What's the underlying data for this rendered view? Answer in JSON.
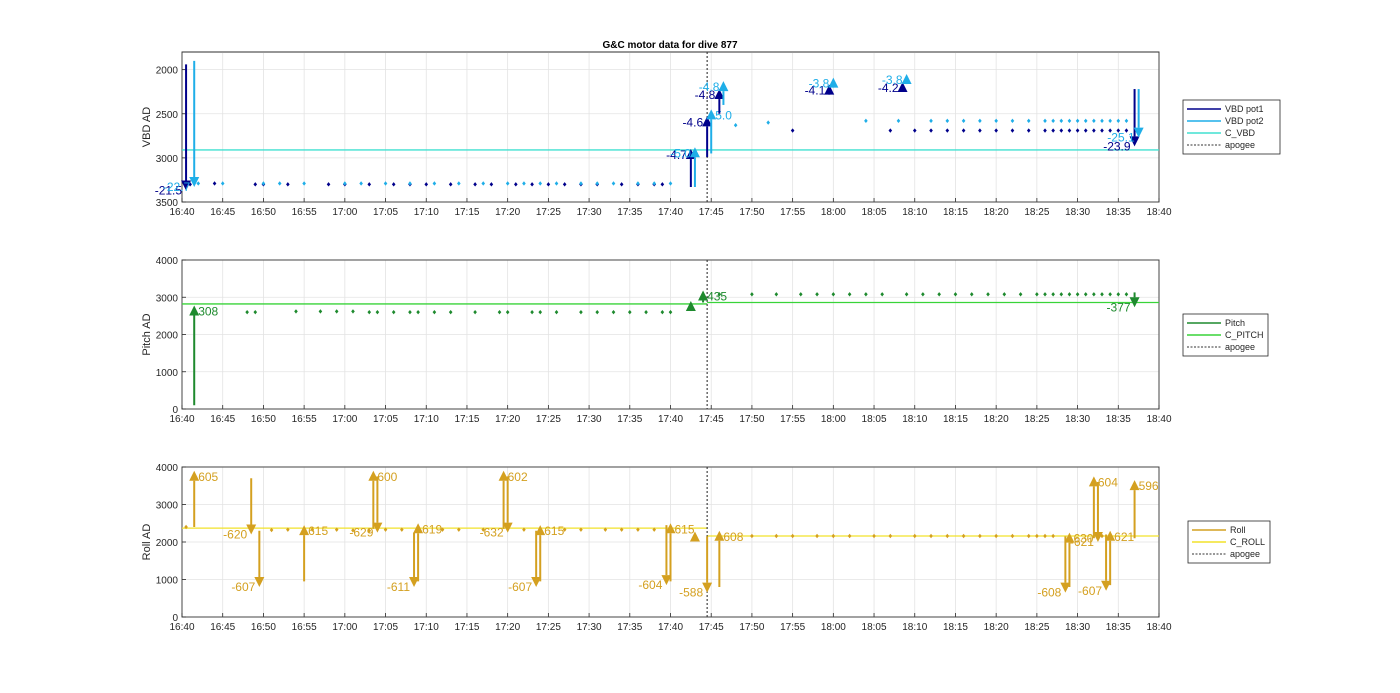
{
  "chart_data": {
    "title": "G&C motor data for dive 877",
    "x_range": [
      "16:40",
      "18:40"
    ],
    "x_ticks": [
      "16:40",
      "16:45",
      "16:50",
      "16:55",
      "17:00",
      "17:05",
      "17:10",
      "17:15",
      "17:20",
      "17:25",
      "17:30",
      "17:35",
      "17:40",
      "17:45",
      "17:50",
      "17:55",
      "18:00",
      "18:05",
      "18:10",
      "18:15",
      "18:20",
      "18:25",
      "18:30",
      "18:35",
      "18:40"
    ],
    "grid": true,
    "legend_placement": "right",
    "apogee_time": "17:44.5",
    "panels": [
      {
        "type": "scatter",
        "ylabel": "VBD AD",
        "y_reversed": true,
        "ylim": [
          1800,
          3500
        ],
        "y_ticks": [
          2000,
          2500,
          3000,
          3500
        ],
        "legend": [
          {
            "label": "VBD pot1",
            "color": "#00008b",
            "style": "solid"
          },
          {
            "label": "VBD pot2",
            "color": "#1faee8",
            "style": "solid"
          },
          {
            "label": "C_VBD",
            "color": "#40e0d0",
            "style": "solid"
          },
          {
            "label": "apogee",
            "color": "#333333",
            "style": "dotted"
          }
        ],
        "reference_lines": [
          {
            "name": "C_VBD",
            "y": 2910,
            "color": "#40e0d0"
          }
        ],
        "series": [
          {
            "name": "VBD pot1",
            "color": "#00008b",
            "x": [
              "16:41",
              "16:44",
              "16:49",
              "16:50",
              "16:53",
              "16:58",
              "17:00",
              "17:03",
              "17:06",
              "17:08",
              "17:10",
              "17:13",
              "17:16",
              "17:18",
              "17:21",
              "17:23",
              "17:25",
              "17:27",
              "17:29",
              "17:31",
              "17:34",
              "17:36",
              "17:38",
              "17:39",
              "17:55",
              "18:07",
              "18:10",
              "18:12",
              "18:14",
              "18:16",
              "18:18",
              "18:20",
              "18:22",
              "18:24",
              "18:26",
              "18:27",
              "18:28",
              "18:29",
              "18:30",
              "18:31",
              "18:32",
              "18:33",
              "18:34",
              "18:35",
              "18:36"
            ],
            "y": [
              3300,
              3290,
              3300,
              3300,
              3300,
              3300,
              3300,
              3300,
              3300,
              3300,
              3300,
              3300,
              3300,
              3300,
              3300,
              3300,
              3300,
              3300,
              3300,
              3300,
              3300,
              3300,
              3300,
              3300,
              2690,
              2690,
              2690,
              2690,
              2690,
              2690,
              2690,
              2690,
              2690,
              2690,
              2690,
              2690,
              2690,
              2690,
              2690,
              2690,
              2690,
              2690,
              2690,
              2690,
              2690
            ]
          },
          {
            "name": "VBD pot2",
            "color": "#1faee8",
            "x": [
              "16:42",
              "16:45",
              "16:50",
              "16:52",
              "16:55",
              "17:00",
              "17:02",
              "17:05",
              "17:08",
              "17:11",
              "17:14",
              "17:17",
              "17:20",
              "17:22",
              "17:24",
              "17:26",
              "17:29",
              "17:31",
              "17:33",
              "17:36",
              "17:38",
              "17:40",
              "17:48",
              "17:52",
              "18:04",
              "18:08",
              "18:12",
              "18:14",
              "18:16",
              "18:18",
              "18:20",
              "18:22",
              "18:24",
              "18:26",
              "18:27",
              "18:28",
              "18:29",
              "18:30",
              "18:31",
              "18:32",
              "18:33",
              "18:34",
              "18:35",
              "18:36"
            ],
            "y": [
              3290,
              3290,
              3290,
              3290,
              3290,
              3290,
              3290,
              3290,
              3290,
              3290,
              3290,
              3290,
              3290,
              3290,
              3290,
              3290,
              3290,
              3290,
              3290,
              3290,
              3290,
              3290,
              2630,
              2600,
              2580,
              2580,
              2580,
              2580,
              2580,
              2580,
              2580,
              2580,
              2580,
              2580,
              2580,
              2580,
              2580,
              2580,
              2580,
              2580,
              2580,
              2580,
              2580,
              2580
            ]
          }
        ],
        "arrows": [
          {
            "series": "VBD pot1",
            "x": "16:40.5",
            "y_from": 1940,
            "y_to": 3370,
            "label": "-21.5"
          },
          {
            "series": "VBD pot2",
            "x": "16:41.5",
            "y_from": 1900,
            "y_to": 3330,
            "label": "-22.7"
          },
          {
            "series": "VBD pot1",
            "x": "17:42.5",
            "y_from": 3330,
            "y_to": 2900,
            "label": "-4.7"
          },
          {
            "series": "VBD pot2",
            "x": "17:43.0",
            "y_from": 3330,
            "y_to": 2880,
            "label": "-5.0"
          },
          {
            "series": "VBD pot1",
            "x": "17:44.5",
            "y_from": 2990,
            "y_to": 2530,
            "label": "-4.6"
          },
          {
            "series": "VBD pot2",
            "x": "17:45.0",
            "y_from": 2950,
            "y_to": 2450,
            "label": "5.0"
          },
          {
            "series": "VBD pot1",
            "x": "17:46.0",
            "y_from": 2500,
            "y_to": 2220,
            "label": "-4.8"
          },
          {
            "series": "VBD pot2",
            "x": "17:46.5",
            "y_from": 2400,
            "y_to": 2130,
            "label": "-4.8"
          },
          {
            "series": "VBD pot1",
            "x": "17:59.5",
            "y_from": 2280,
            "y_to": 2170,
            "label": "-4.1"
          },
          {
            "series": "VBD pot2",
            "x": "18:00.0",
            "y_from": 2170,
            "y_to": 2090,
            "label": "-3.8"
          },
          {
            "series": "VBD pot1",
            "x": "18:08.5",
            "y_from": 2230,
            "y_to": 2140,
            "label": "-4.2"
          },
          {
            "series": "VBD pot2",
            "x": "18:09.0",
            "y_from": 2120,
            "y_to": 2050,
            "label": "-3.8"
          },
          {
            "series": "VBD pot1",
            "x": "18:37.0",
            "y_from": 2220,
            "y_to": 2870,
            "label": "-23.9"
          },
          {
            "series": "VBD pot2",
            "x": "18:37.5",
            "y_from": 2220,
            "y_to": 2770,
            "label": "-25.1"
          }
        ]
      },
      {
        "type": "scatter",
        "ylabel": "Pitch AD",
        "y_reversed": false,
        "ylim": [
          0,
          4000
        ],
        "y_ticks": [
          0,
          1000,
          2000,
          3000,
          4000
        ],
        "legend": [
          {
            "label": "Pitch",
            "color": "#1e8a2e",
            "style": "solid"
          },
          {
            "label": "C_PITCH",
            "color": "#39d439",
            "style": "solid"
          },
          {
            "label": "apogee",
            "color": "#333333",
            "style": "dotted"
          }
        ],
        "reference_lines": [
          {
            "name": "C_PITCH",
            "y": 2820,
            "x_to": "17:44.5",
            "color": "#39d439"
          },
          {
            "name": "C_PITCH",
            "y": 2860,
            "x_from": "17:44.5",
            "color": "#39d439"
          }
        ],
        "series": [
          {
            "name": "Pitch",
            "color": "#1e8a2e",
            "x": [
              "16:48",
              "16:49",
              "16:54",
              "16:57",
              "16:59",
              "17:01",
              "17:03",
              "17:04",
              "17:06",
              "17:08",
              "17:09",
              "17:11",
              "17:13",
              "17:16",
              "17:19",
              "17:20",
              "17:23",
              "17:24",
              "17:26",
              "17:29",
              "17:31",
              "17:33",
              "17:35",
              "17:37",
              "17:39",
              "17:40",
              "17:46",
              "17:50",
              "17:53",
              "17:56",
              "17:58",
              "18:00",
              "18:02",
              "18:04",
              "18:06",
              "18:09",
              "18:11",
              "18:13",
              "18:15",
              "18:17",
              "18:19",
              "18:21",
              "18:23",
              "18:25",
              "18:26",
              "18:27",
              "18:28",
              "18:29",
              "18:30",
              "18:31",
              "18:32",
              "18:33",
              "18:34",
              "18:35",
              "18:36"
            ],
            "y": [
              2600,
              2600,
              2620,
              2620,
              2620,
              2620,
              2600,
              2600,
              2600,
              2600,
              2600,
              2600,
              2600,
              2600,
              2600,
              2600,
              2600,
              2600,
              2600,
              2600,
              2600,
              2600,
              2600,
              2600,
              2600,
              2600,
              3080,
              3080,
              3080,
              3080,
              3080,
              3080,
              3080,
              3080,
              3080,
              3080,
              3080,
              3080,
              3080,
              3080,
              3080,
              3080,
              3080,
              3080,
              3080,
              3080,
              3080,
              3080,
              3080,
              3080,
              3080,
              3080,
              3080,
              3080,
              3080
            ]
          }
        ],
        "arrows": [
          {
            "series": "Pitch",
            "x": "16:41.5",
            "y_from": 100,
            "y_to": 2780,
            "label": "308"
          },
          {
            "series": "Pitch",
            "x": "17:42.5",
            "y_from": 2630,
            "y_to": 2900,
            "label": ""
          },
          {
            "series": "Pitch",
            "x": "17:44.0",
            "y_from": 2860,
            "y_to": 3180,
            "label": "435"
          },
          {
            "series": "Pitch",
            "x": "18:37.0",
            "y_from": 3130,
            "y_to": 2730,
            "label": "-377"
          }
        ]
      },
      {
        "type": "scatter",
        "ylabel": "Roll AD",
        "y_reversed": false,
        "ylim": [
          0,
          4000
        ],
        "y_ticks": [
          0,
          1000,
          2000,
          3000,
          4000
        ],
        "legend": [
          {
            "label": "Roll",
            "color": "#d4a020",
            "style": "solid"
          },
          {
            "label": "C_ROLL",
            "color": "#f2e22a",
            "style": "solid"
          },
          {
            "label": "apogee",
            "color": "#333333",
            "style": "dotted"
          }
        ],
        "reference_lines": [
          {
            "name": "C_ROLL",
            "y": 2370,
            "x_to": "17:44.5",
            "color": "#f2e22a"
          },
          {
            "name": "C_ROLL",
            "y": 2160,
            "x_from": "17:44.5",
            "color": "#f2e22a"
          }
        ],
        "series": [
          {
            "name": "Roll",
            "color": "#d4a020",
            "x": [
              "16:40.5",
              "16:51",
              "16:53",
              "16:56",
              "16:59",
              "17:01",
              "17:03",
              "17:05",
              "17:07",
              "17:12",
              "17:14",
              "17:17",
              "17:22",
              "17:27",
              "17:29",
              "17:32",
              "17:34",
              "17:36",
              "17:38",
              "17:50",
              "17:53",
              "17:55",
              "17:58",
              "18:00",
              "18:02",
              "18:05",
              "18:07",
              "18:10",
              "18:12",
              "18:14",
              "18:16",
              "18:18",
              "18:20",
              "18:22",
              "18:24",
              "18:25",
              "18:26",
              "18:27",
              "18:33"
            ],
            "y": [
              2400,
              2320,
              2330,
              2330,
              2330,
              2310,
              2300,
              2330,
              2330,
              2330,
              2330,
              2330,
              2330,
              2330,
              2330,
              2330,
              2330,
              2330,
              2330,
              2160,
              2160,
              2160,
              2160,
              2160,
              2160,
              2160,
              2160,
              2160,
              2160,
              2160,
              2160,
              2160,
              2160,
              2160,
              2160,
              2160,
              2160,
              2160,
              2160
            ]
          }
        ],
        "arrows": [
          {
            "series": "Roll",
            "x": "16:41.5",
            "y_from": 2400,
            "y_to": 3900,
            "label": "605"
          },
          {
            "series": "Roll",
            "x": "16:48.5",
            "y_from": 3700,
            "y_to": 2200,
            "label": "-620"
          },
          {
            "series": "Roll",
            "x": "16:49.5",
            "y_from": 2300,
            "y_to": 800,
            "label": "-607"
          },
          {
            "series": "Roll",
            "x": "16:55.0",
            "y_from": 950,
            "y_to": 2450,
            "label": "615"
          },
          {
            "series": "Roll",
            "x": "17:03.5",
            "y_from": 2350,
            "y_to": 3900,
            "label": "600"
          },
          {
            "series": "Roll",
            "x": "17:04.0",
            "y_from": 3750,
            "y_to": 2250,
            "label": "-629"
          },
          {
            "series": "Roll",
            "x": "17:08.5",
            "y_from": 2250,
            "y_to": 800,
            "label": "-611"
          },
          {
            "series": "Roll",
            "x": "17:09.0",
            "y_from": 950,
            "y_to": 2500,
            "label": "619"
          },
          {
            "series": "Roll",
            "x": "17:19.5",
            "y_from": 2350,
            "y_to": 3900,
            "label": "602"
          },
          {
            "series": "Roll",
            "x": "17:20.0",
            "y_from": 3750,
            "y_to": 2250,
            "label": "-632"
          },
          {
            "series": "Roll",
            "x": "17:23.5",
            "y_from": 2300,
            "y_to": 800,
            "label": "-607"
          },
          {
            "series": "Roll",
            "x": "17:24.0",
            "y_from": 950,
            "y_to": 2450,
            "label": "615"
          },
          {
            "series": "Roll",
            "x": "17:39.5",
            "y_from": 2450,
            "y_to": 850,
            "label": "-604"
          },
          {
            "series": "Roll",
            "x": "17:40.0",
            "y_from": 950,
            "y_to": 2500,
            "label": "615"
          },
          {
            "series": "Roll",
            "x": "17:43.0",
            "y_from": 2150,
            "y_to": 2280,
            "label": ""
          },
          {
            "series": "Roll",
            "x": "17:44.5",
            "y_from": 2150,
            "y_to": 650,
            "label": "-588"
          },
          {
            "series": "Roll",
            "x": "17:46.0",
            "y_from": 800,
            "y_to": 2300,
            "label": "608"
          },
          {
            "series": "Roll",
            "x": "18:28.5",
            "y_from": 2150,
            "y_to": 650,
            "label": "-608"
          },
          {
            "series": "Roll",
            "x": "18:29.0",
            "y_from": 800,
            "y_to": 2250,
            "label": "630"
          },
          {
            "series": "Roll",
            "x": "18:32.0",
            "y_from": 2100,
            "y_to": 3750,
            "label": "604"
          },
          {
            "series": "Roll",
            "x": "18:32.5",
            "y_from": 3600,
            "y_to": 2000,
            "label": "-621"
          },
          {
            "series": "Roll",
            "x": "18:33.5",
            "y_from": 2200,
            "y_to": 700,
            "label": "-607"
          },
          {
            "series": "Roll",
            "x": "18:34.0",
            "y_from": 850,
            "y_to": 2300,
            "label": "621"
          },
          {
            "series": "Roll",
            "x": "18:37.0",
            "y_from": 2100,
            "y_to": 3650,
            "label": "596"
          }
        ]
      }
    ]
  }
}
